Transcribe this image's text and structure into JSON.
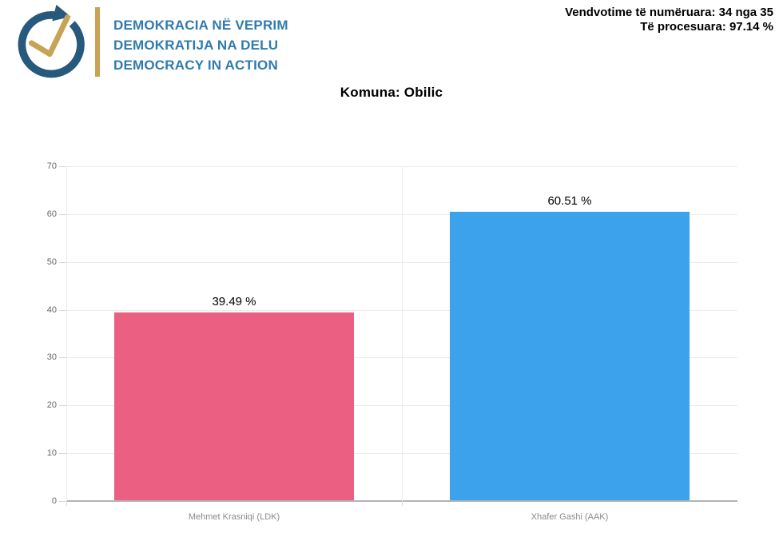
{
  "header": {
    "logo": {
      "lines": [
        "DEMOKRACIA NË VEPRIM",
        "DEMOKRATIJA NA DELU",
        "DEMOCRACY IN ACTION"
      ],
      "icon": "circular-arrow-with-checkmark",
      "colors": {
        "circle": "#27597c",
        "check": "#c8a355",
        "divider": "#c8a355",
        "text": "#2f7bae"
      }
    },
    "stats": {
      "counted": "Vendvotime të numëruara: 34 nga 35",
      "processed": "Të procesuara: 97.14 %"
    }
  },
  "chart_data": {
    "type": "bar",
    "title": "Komuna: Obilic",
    "categories": [
      "Mehmet Krasniqi (LDK)",
      "Xhafer Gashi (AAK)"
    ],
    "values": [
      39.49,
      60.51
    ],
    "value_labels": [
      "39.49 %",
      "60.51 %"
    ],
    "bar_colors": [
      "#eb5f82",
      "#3ca2eb"
    ],
    "ylim": [
      0,
      70
    ],
    "yticks": [
      0,
      10,
      20,
      30,
      40,
      50,
      60,
      70
    ],
    "xlabel": "",
    "ylabel": "",
    "grid": true,
    "legend": "none"
  }
}
